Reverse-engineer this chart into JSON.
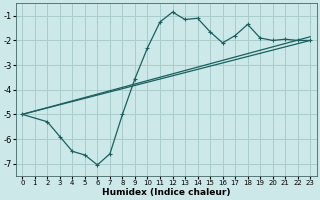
{
  "xlabel": "Humidex (Indice chaleur)",
  "bg_color": "#cce8e8",
  "grid_color": "#aacccc",
  "line_color": "#1a6060",
  "xlim": [
    -0.5,
    23.5
  ],
  "ylim": [
    -7.5,
    -0.5
  ],
  "xticks": [
    0,
    1,
    2,
    3,
    4,
    5,
    6,
    7,
    8,
    9,
    10,
    11,
    12,
    13,
    14,
    15,
    16,
    17,
    18,
    19,
    20,
    21,
    22,
    23
  ],
  "yticks": [
    -7,
    -6,
    -5,
    -4,
    -3,
    -2,
    -1
  ],
  "wavy_x": [
    0,
    2,
    3,
    4,
    5,
    6,
    7,
    8,
    9,
    10,
    11,
    12,
    13,
    14,
    15,
    16,
    17,
    18,
    19,
    20,
    21,
    22,
    23
  ],
  "wavy_y": [
    -5.0,
    -5.3,
    -5.9,
    -6.5,
    -6.65,
    -7.05,
    -6.6,
    -5.0,
    -3.55,
    -2.3,
    -1.25,
    -0.85,
    -1.15,
    -1.1,
    -1.65,
    -2.1,
    -1.8,
    -1.35,
    -1.9,
    -2.0,
    -1.95,
    -2.0,
    -2.0
  ],
  "line1_x": [
    0,
    23
  ],
  "line1_y": [
    -5.0,
    -1.85
  ],
  "line2_x": [
    0,
    23
  ],
  "line2_y": [
    -5.0,
    -2.0
  ],
  "tick_fontsize": 5.5,
  "xlabel_fontsize": 6.5
}
